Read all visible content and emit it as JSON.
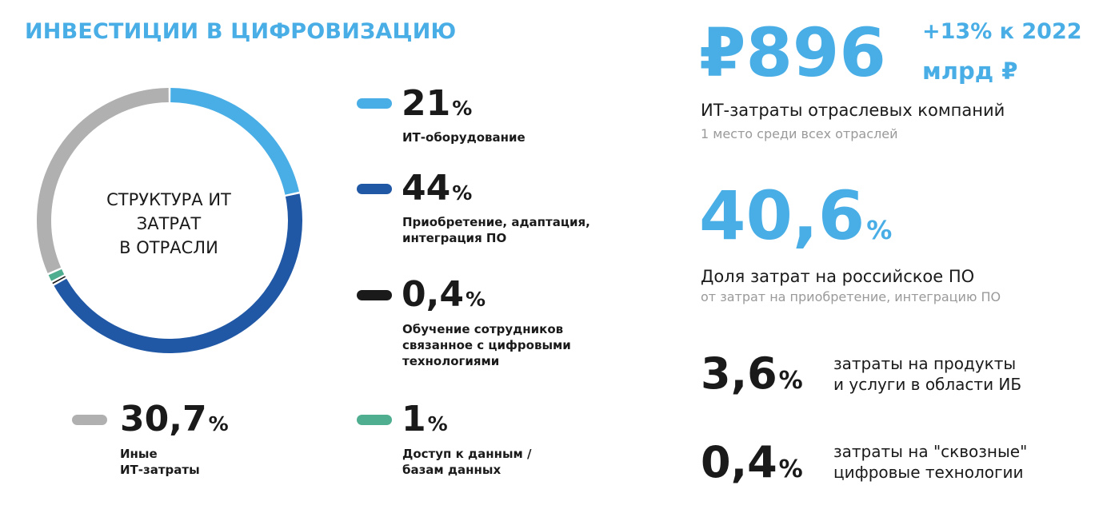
{
  "header": {
    "title": "ИНВЕСТИЦИИ В ЦИФРОВИЗАЦИЮ"
  },
  "donut": {
    "center_lines": [
      "СТРУКТУРА ИТ",
      "ЗАТРАТ",
      "В ОТРАСЛИ"
    ]
  },
  "chart_data": {
    "type": "pie",
    "title": "СТРУКТУРА ИТ ЗАТРАТ В ОТРАСЛИ",
    "categories": [
      "ИТ-оборудование",
      "Приобретение, адаптация, интеграция ПО",
      "Обучение сотрудников связанное с цифровыми технологиями",
      "Доступ к данным / базам данных",
      "Иные ИТ-затраты"
    ],
    "values": [
      21,
      44,
      0.4,
      1,
      30.7
    ],
    "colors": [
      "#4aaee6",
      "#2058a6",
      "#1a1a1a",
      "#4fae8f",
      "#b0b0b0"
    ],
    "unit": "%"
  },
  "legend": [
    {
      "value": "21",
      "unit": "%",
      "label_lines": [
        "ИТ-оборудование"
      ],
      "color": "#4aaee6"
    },
    {
      "value": "44",
      "unit": "%",
      "label_lines": [
        "Приобретение, адаптация,",
        "интеграция ПО"
      ],
      "color": "#2058a6"
    },
    {
      "value": "0,4",
      "unit": "%",
      "label_lines": [
        "Обучение сотрудников",
        "связанное с цифровыми",
        "технологиями"
      ],
      "color": "#1a1a1a"
    },
    {
      "value": "1",
      "unit": "%",
      "label_lines": [
        "Доступ к данным /",
        "базам данных"
      ],
      "color": "#4fae8f"
    },
    {
      "value": "30,7",
      "unit": "%",
      "label_lines": [
        "Иные",
        "ИТ-затраты"
      ],
      "color": "#b0b0b0"
    }
  ],
  "stats": {
    "it_spend": {
      "value": "₽896",
      "change": "+13% к 2022",
      "unit": "млрд ₽",
      "title": "ИТ-затраты отраслевых компаний",
      "subtitle": "1 место среди всех отраслей"
    },
    "russian_software": {
      "value": "40,6",
      "unit": "%",
      "title": "Доля затрат на российское ПО",
      "subtitle": "от затрат на приобретение, интеграцию ПО"
    },
    "infosec": {
      "value": "3,6",
      "unit": "%",
      "desc_lines": [
        "затраты на продукты",
        "и услуги в области ИБ"
      ]
    },
    "end_to_end": {
      "value": "0,4",
      "unit": "%",
      "desc_lines": [
        "затраты на \"сквозные\"",
        "цифровые технологии"
      ]
    }
  }
}
